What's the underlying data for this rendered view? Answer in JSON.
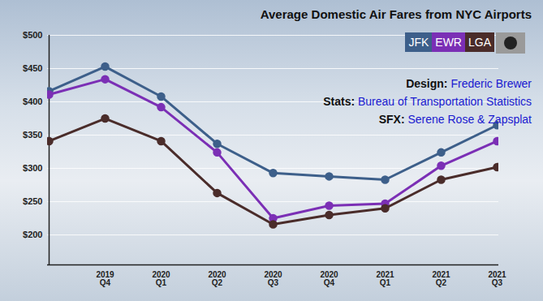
{
  "chart_data": {
    "type": "line",
    "title": "Average Domestic Air Fares from NYC Airports",
    "annotations": [
      {
        "label": "Design:",
        "text": "Frederic Brewer"
      },
      {
        "label": "Stats:",
        "text": "Bureau of Transportation Statistics"
      },
      {
        "label": "SFX:",
        "text": "Serene Rose & Zapsplat"
      }
    ],
    "categories": [
      null,
      "2019 Q4",
      "2020 Q1",
      "2020 Q2",
      "2020 Q3",
      "2020 Q4",
      "2021 Q1",
      "2021 Q2",
      "2021 Q3"
    ],
    "series": [
      {
        "name": "JFK",
        "color": "#3d5f8a",
        "values": [
          416,
          453,
          408,
          337,
          293,
          288,
          283,
          324,
          365
        ]
      },
      {
        "name": "EWR",
        "color": "#7b2fb5",
        "values": [
          411,
          434,
          392,
          324,
          225,
          244,
          247,
          304,
          341
        ]
      },
      {
        "name": "LGA",
        "color": "#4a2c2a",
        "values": [
          341,
          375,
          341,
          263,
          216,
          230,
          240,
          283,
          302
        ]
      }
    ],
    "ylim": [
      155,
      500
    ],
    "yticks": [
      {
        "value": 200,
        "label": "$200"
      },
      {
        "value": 250,
        "label": "$250"
      },
      {
        "value": 300,
        "label": "$300"
      },
      {
        "value": 350,
        "label": "$350"
      },
      {
        "value": 400,
        "label": "$400"
      },
      {
        "value": 450,
        "label": "$450"
      },
      {
        "value": 500,
        "label": "$500"
      }
    ],
    "grid": true,
    "marker": "circle",
    "legend": "top-right"
  }
}
